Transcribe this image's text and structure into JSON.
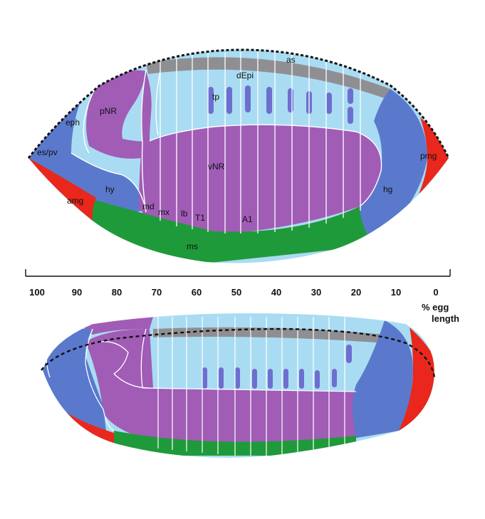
{
  "labels": {
    "as": "as",
    "dEpi": "dEpi",
    "tp": "tp",
    "pNR": "pNR",
    "eph": "eph",
    "es_pv": "es/pv",
    "vNR": "vNR",
    "hy": "hy",
    "amg": "amg",
    "md": "md",
    "mx": "mx",
    "lb": "lb",
    "T1": "T1",
    "A1": "A1",
    "ms": "ms",
    "hg": "hg",
    "pmg": "pmg"
  },
  "axis": {
    "ticks": [
      "100",
      "90",
      "80",
      "70",
      "60",
      "50",
      "40",
      "30",
      "20",
      "10",
      "0"
    ],
    "unit_line1": "% egg",
    "unit_line2": "length"
  },
  "colors": {
    "epidermis": "#a9dcf2",
    "neural": "#a15cb6",
    "mesoderm": "#1f9a3a",
    "gut": "#e9271c",
    "head": "#5a79cd",
    "amnioserosa": "#8f8f93",
    "placode": "#6c6fd0"
  }
}
